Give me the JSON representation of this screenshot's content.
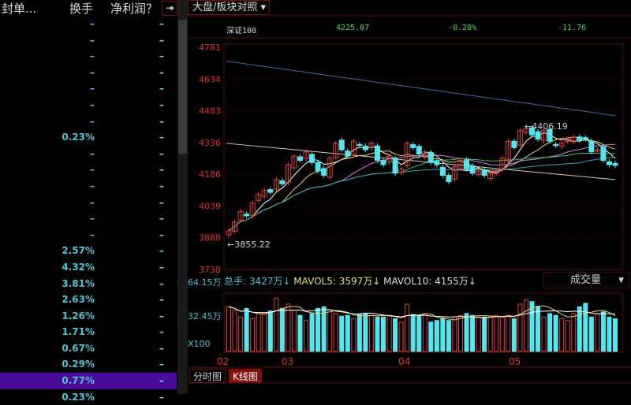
{
  "columns": {
    "seal": "封单...",
    "turnover": "换手",
    "net_profit": "净利润？"
  },
  "collapse_button": "⇥",
  "rows": [
    {
      "turnover": "–",
      "net_profit": "–"
    },
    {
      "turnover": "–",
      "net_profit": "–"
    },
    {
      "turnover": "–",
      "net_profit": "–"
    },
    {
      "turnover": "–",
      "net_profit": "–"
    },
    {
      "turnover": "–",
      "net_profit": "–"
    },
    {
      "turnover": "–",
      "net_profit": "–"
    },
    {
      "turnover": "–",
      "net_profit": "–"
    },
    {
      "turnover": "0.23%",
      "net_profit": "–"
    },
    {
      "turnover": "–",
      "net_profit": "–"
    },
    {
      "turnover": "–",
      "net_profit": "–"
    },
    {
      "turnover": "–",
      "net_profit": "–"
    },
    {
      "turnover": "–",
      "net_profit": "–"
    },
    {
      "turnover": "–",
      "net_profit": "–"
    },
    {
      "turnover": "–",
      "net_profit": "–"
    },
    {
      "turnover": "2.57%",
      "net_profit": "–"
    },
    {
      "turnover": "4.32%",
      "net_profit": "–"
    },
    {
      "turnover": "3.81%",
      "net_profit": "–"
    },
    {
      "turnover": "2.63%",
      "net_profit": "–"
    },
    {
      "turnover": "1.26%",
      "net_profit": "–"
    },
    {
      "turnover": "1.71%",
      "net_profit": "–"
    },
    {
      "turnover": "0.67%",
      "net_profit": "–"
    },
    {
      "turnover": "0.29%",
      "net_profit": "–"
    },
    {
      "turnover": "0.77%",
      "net_profit": "–",
      "selected": true
    },
    {
      "turnover": "0.23%",
      "net_profit": "–"
    }
  ],
  "compare_dropdown": "大盘/板块对照 ▾",
  "index": {
    "name": "深证100",
    "price": "4225.87",
    "change_pct": "-0.28%",
    "change": "-11.76"
  },
  "volume": {
    "total": "总手: 3427万↓",
    "mavol5": "MAVOL5: 3597万↓",
    "mavol10": "MAVOL10: 4155万↓",
    "indicator_dropdown": "成交量",
    "top_label": "64.15万",
    "mid_label": "32.45万",
    "unit_label": "X100"
  },
  "tabs": {
    "intraday": "分时图",
    "kline": "K线图"
  },
  "colors": {
    "up": "#e0403c",
    "down": "#54e6ee",
    "axis": "#e03030",
    "grid": "#5a0a0a"
  },
  "chart_data": {
    "type": "candlestick",
    "ylim": [
      3738,
      4781
    ],
    "yticks": [
      "4781",
      "4634",
      "4483",
      "4336",
      "4186",
      "4039",
      "3888",
      "3738"
    ],
    "xticks": [
      "02",
      "03",
      "04",
      "05"
    ],
    "annotations": {
      "high": "4406.19",
      "low": "3855.22"
    },
    "closes": [
      3920,
      3960,
      4010,
      3990,
      4050,
      4090,
      4110,
      4100,
      4160,
      4140,
      4230,
      4270,
      4250,
      4290,
      4240,
      4200,
      4180,
      4260,
      4330,
      4300,
      4270,
      4340,
      4320,
      4300,
      4330,
      4250,
      4230,
      4270,
      4190,
      4210,
      4330,
      4310,
      4280,
      4290,
      4240,
      4230,
      4180,
      4150,
      4220,
      4250,
      4210,
      4190,
      4200,
      4180,
      4190,
      4200,
      4260,
      4340,
      4310,
      4390,
      4400,
      4370,
      4350,
      4390,
      4340,
      4320,
      4330,
      4350,
      4360,
      4345,
      4350,
      4290,
      4300,
      4250,
      4230,
      4226
    ],
    "long_lines": [
      {
        "from": 4716,
        "to": 4460
      },
      {
        "from": 4330,
        "to": 4160
      }
    ],
    "volumes": [
      52,
      48,
      40,
      50,
      38,
      44,
      45,
      47,
      62,
      50,
      55,
      48,
      42,
      36,
      44,
      50,
      52,
      48,
      44,
      41,
      42,
      38,
      43,
      44,
      42,
      40,
      40,
      42,
      38,
      34,
      55,
      43,
      42,
      44,
      34,
      36,
      38,
      36,
      40,
      42,
      44,
      42,
      40,
      40,
      40,
      42,
      40,
      42,
      38,
      55,
      60,
      58,
      52,
      40,
      44,
      42,
      38,
      36,
      44,
      52,
      56,
      40,
      44,
      46,
      40,
      38
    ]
  }
}
